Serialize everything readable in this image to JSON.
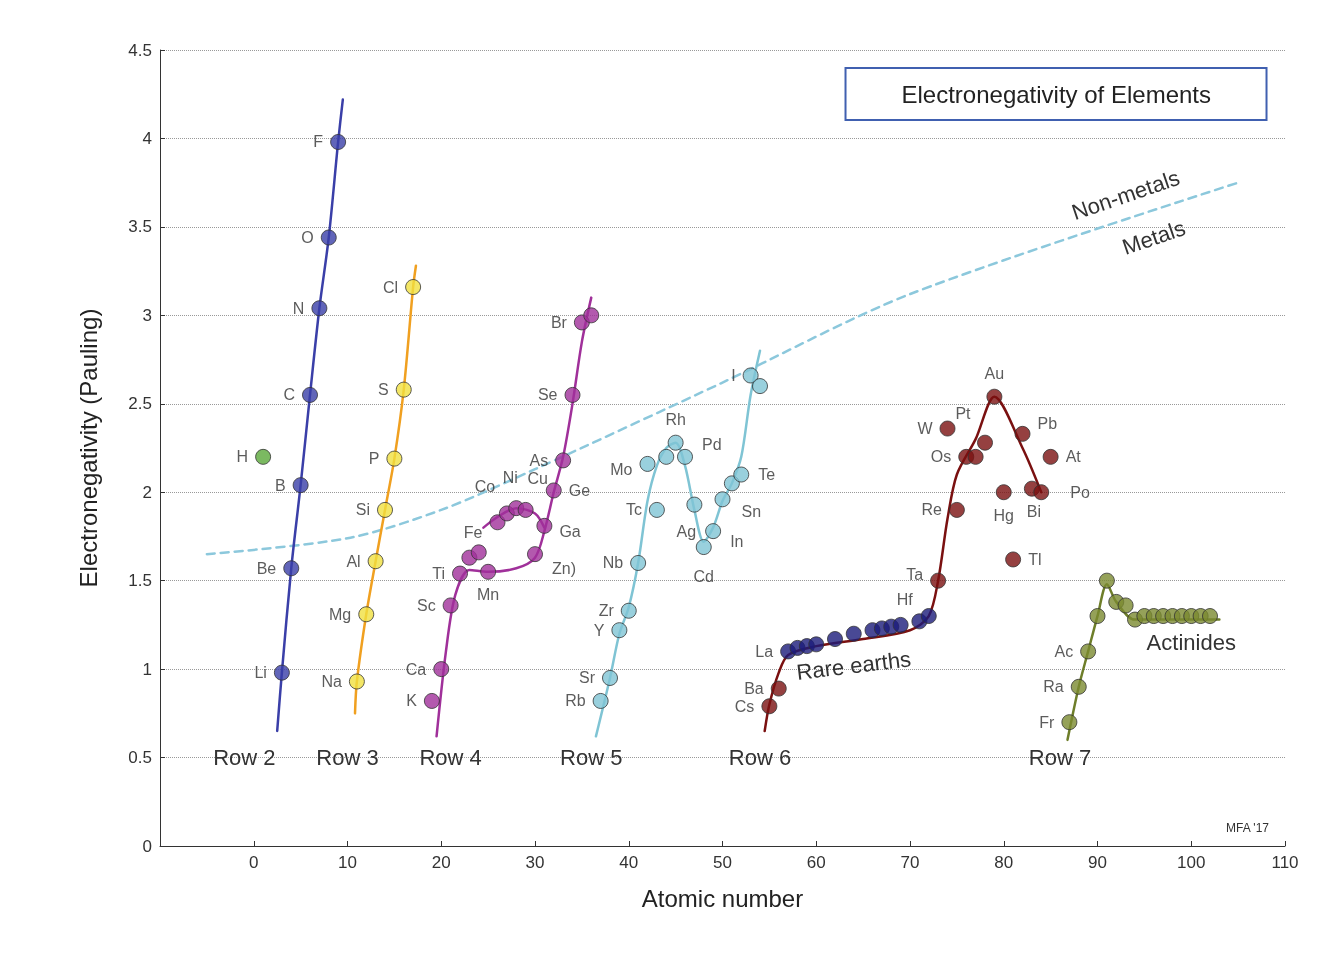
{
  "chart_data": {
    "type": "scatter",
    "title": "Electronegativity of Elements",
    "xlabel": "Atomic number",
    "ylabel": "Electronegativity (Pauling)",
    "xlim": [
      -10,
      110
    ],
    "xticks": [
      0,
      10,
      20,
      30,
      40,
      50,
      60,
      70,
      80,
      90,
      100,
      110
    ],
    "ylim": [
      0,
      4.5
    ],
    "yticks": [
      0,
      0.5,
      1,
      1.5,
      2,
      2.5,
      3,
      3.5,
      4,
      4.5
    ],
    "grid": "y",
    "marker": "circle",
    "line_style": "solid",
    "series": [
      {
        "type": "line",
        "color": "#8cc8dc",
        "line_style": "dashed",
        "marker": "none",
        "x": [
          -5,
          10,
          20,
          30,
          50,
          70,
          105
        ],
        "values": [
          1.65,
          1.74,
          1.9,
          2.13,
          2.62,
          3.12,
          3.75
        ]
      },
      {
        "type": "line",
        "color": "#3a3fa8",
        "marker": "none",
        "x": [
          2.5,
          3,
          4,
          5,
          6,
          7,
          8,
          9,
          9.5
        ],
        "values": [
          0.65,
          0.98,
          1.57,
          2.04,
          2.55,
          3.04,
          3.44,
          3.98,
          4.22
        ]
      },
      {
        "type": "line",
        "color": "#f0a020",
        "marker": "none",
        "x": [
          10.8,
          11,
          12,
          13,
          14,
          15,
          16,
          17,
          17.3
        ],
        "values": [
          0.75,
          0.93,
          1.31,
          1.61,
          1.9,
          2.19,
          2.58,
          3.16,
          3.28
        ]
      },
      {
        "type": "line",
        "color": "#a0309a",
        "marker": "none",
        "x": [
          19.5,
          20.5,
          21.5,
          23,
          25,
          28,
          30,
          31,
          32,
          33,
          34,
          35,
          36
        ],
        "values": [
          0.62,
          1.1,
          1.42,
          1.56,
          1.55,
          1.57,
          1.63,
          1.78,
          2.0,
          2.2,
          2.5,
          2.85,
          3.1
        ]
      },
      {
        "type": "line",
        "color": "#a0309a",
        "marker": "none",
        "x": [
          24.5,
          26,
          28,
          30,
          31
        ],
        "values": [
          1.8,
          1.86,
          1.91,
          1.88,
          1.8
        ]
      },
      {
        "type": "line",
        "color": "#7fc4d4",
        "marker": "none",
        "x": [
          36.5,
          38,
          39,
          40,
          41,
          42,
          43,
          44,
          45,
          46,
          47,
          48,
          49,
          50,
          51,
          52,
          53,
          54
        ],
        "values": [
          0.62,
          0.95,
          1.2,
          1.35,
          1.6,
          1.95,
          2.15,
          2.25,
          2.28,
          2.15,
          1.9,
          1.72,
          1.8,
          1.95,
          2.05,
          2.2,
          2.55,
          2.8
        ]
      },
      {
        "type": "line",
        "color": "#7a1010",
        "marker": "none",
        "x": [
          54.5,
          55,
          56,
          57,
          60,
          65,
          70,
          72,
          73,
          74,
          75,
          77,
          79,
          82,
          84
        ],
        "values": [
          0.65,
          0.8,
          0.98,
          1.08,
          1.13,
          1.17,
          1.22,
          1.3,
          1.5,
          1.85,
          2.1,
          2.3,
          2.54,
          2.25,
          2.0
        ]
      },
      {
        "type": "line",
        "color": "#6e7e2a",
        "marker": "none",
        "x": [
          86.8,
          88,
          89,
          90,
          91,
          92,
          94,
          103
        ],
        "values": [
          0.6,
          0.9,
          1.1,
          1.3,
          1.48,
          1.38,
          1.28,
          1.28
        ]
      },
      {
        "color": "#5aa83a",
        "x": [
          1
        ],
        "values": [
          2.2
        ],
        "value_labels": [
          "H"
        ]
      },
      {
        "color": "#3a3fa8",
        "x": [
          3,
          4,
          5,
          6,
          7,
          8,
          9
        ],
        "values": [
          0.98,
          1.57,
          2.04,
          2.55,
          3.04,
          3.44,
          3.98
        ],
        "value_labels": [
          "Li",
          "Be",
          "B",
          "C",
          "N",
          "O",
          "F"
        ]
      },
      {
        "color": "#f0e040",
        "x": [
          11,
          12,
          13,
          14,
          15,
          16,
          17
        ],
        "values": [
          0.93,
          1.31,
          1.61,
          1.9,
          2.19,
          2.58,
          3.16
        ],
        "value_labels": [
          "Na",
          "Mg",
          "Al",
          "Si",
          "P",
          "S",
          "Cl"
        ]
      },
      {
        "color": "#a0309a",
        "x": [
          19,
          20,
          21,
          22,
          23,
          24,
          25,
          26,
          27,
          28,
          29,
          30,
          31,
          32,
          33,
          34,
          35,
          36
        ],
        "values": [
          0.82,
          1.0,
          1.36,
          1.54,
          1.63,
          1.66,
          1.55,
          1.83,
          1.88,
          1.91,
          1.9,
          1.65,
          1.81,
          2.01,
          2.18,
          2.55,
          2.96,
          3.0
        ],
        "value_labels": [
          "K",
          "Ca",
          "Sc",
          "Ti",
          null,
          null,
          "Mn",
          "Fe",
          "Co",
          "Ni",
          "Cu",
          "Zn)",
          "Ga",
          "Ge",
          "As",
          "Se",
          "Br",
          null
        ]
      },
      {
        "color": "#7fc4d4",
        "x": [
          37,
          38,
          39,
          40,
          41,
          42,
          43,
          44,
          45,
          46,
          47,
          48,
          49,
          50,
          51,
          52,
          53,
          54
        ],
        "values": [
          0.82,
          0.95,
          1.22,
          1.33,
          1.6,
          2.16,
          1.9,
          2.2,
          2.28,
          2.2,
          1.93,
          1.69,
          1.78,
          1.96,
          2.05,
          2.1,
          2.66,
          2.6
        ],
        "value_labels": [
          "Rb",
          "Sr",
          "Y",
          "Zr",
          "Nb",
          "Mo",
          "Tc",
          null,
          "Rh",
          "Pd",
          "Ag",
          "Cd",
          "In",
          "Sn",
          null,
          "Te",
          "I",
          null
        ]
      },
      {
        "color": "#1c1c7a",
        "x": [
          57,
          58,
          59,
          60,
          62,
          64,
          66,
          67,
          68,
          69,
          71,
          72
        ],
        "values": [
          1.1,
          1.12,
          1.13,
          1.14,
          1.17,
          1.2,
          1.22,
          1.23,
          1.24,
          1.25,
          1.27,
          1.3
        ],
        "value_labels": [
          "La",
          null,
          null,
          null,
          null,
          null,
          null,
          null,
          null,
          null,
          null,
          "Hf"
        ]
      },
      {
        "color": "#7a1010",
        "x": [
          55,
          56,
          73,
          74,
          75,
          76,
          77,
          78,
          79,
          80,
          81,
          82,
          83,
          84,
          85
        ],
        "values": [
          0.79,
          0.89,
          1.5,
          2.36,
          1.9,
          2.2,
          2.2,
          2.28,
          2.54,
          2.0,
          1.62,
          2.33,
          2.02,
          2.0,
          2.2
        ],
        "value_labels": [
          "Cs",
          "Ba",
          "Ta",
          "W",
          "Re",
          "Os",
          null,
          "Pt",
          "Au",
          "Hg",
          "Tl",
          "Pb",
          "Bi",
          "Po",
          "At"
        ]
      },
      {
        "color": "#7a8a30",
        "x": [
          87,
          88,
          89,
          90,
          91,
          92,
          93,
          94,
          95,
          96,
          97,
          98,
          99,
          100,
          101,
          102
        ],
        "values": [
          0.7,
          0.9,
          1.1,
          1.3,
          1.5,
          1.38,
          1.36,
          1.28,
          1.3,
          1.3,
          1.3,
          1.3,
          1.3,
          1.3,
          1.3,
          1.3
        ],
        "value_labels": [
          "Fr",
          "Ra",
          "Ac",
          null,
          null,
          null,
          null,
          null,
          null,
          null,
          null,
          null,
          null,
          null,
          null,
          null
        ]
      }
    ],
    "annotations": [
      "Row 2",
      "Row 3",
      "Row 4",
      "Row 5",
      "Row 6",
      "Row 7",
      "Rare earths",
      "Actinides",
      "Non-metals",
      "Metals",
      "MFA '17"
    ]
  }
}
